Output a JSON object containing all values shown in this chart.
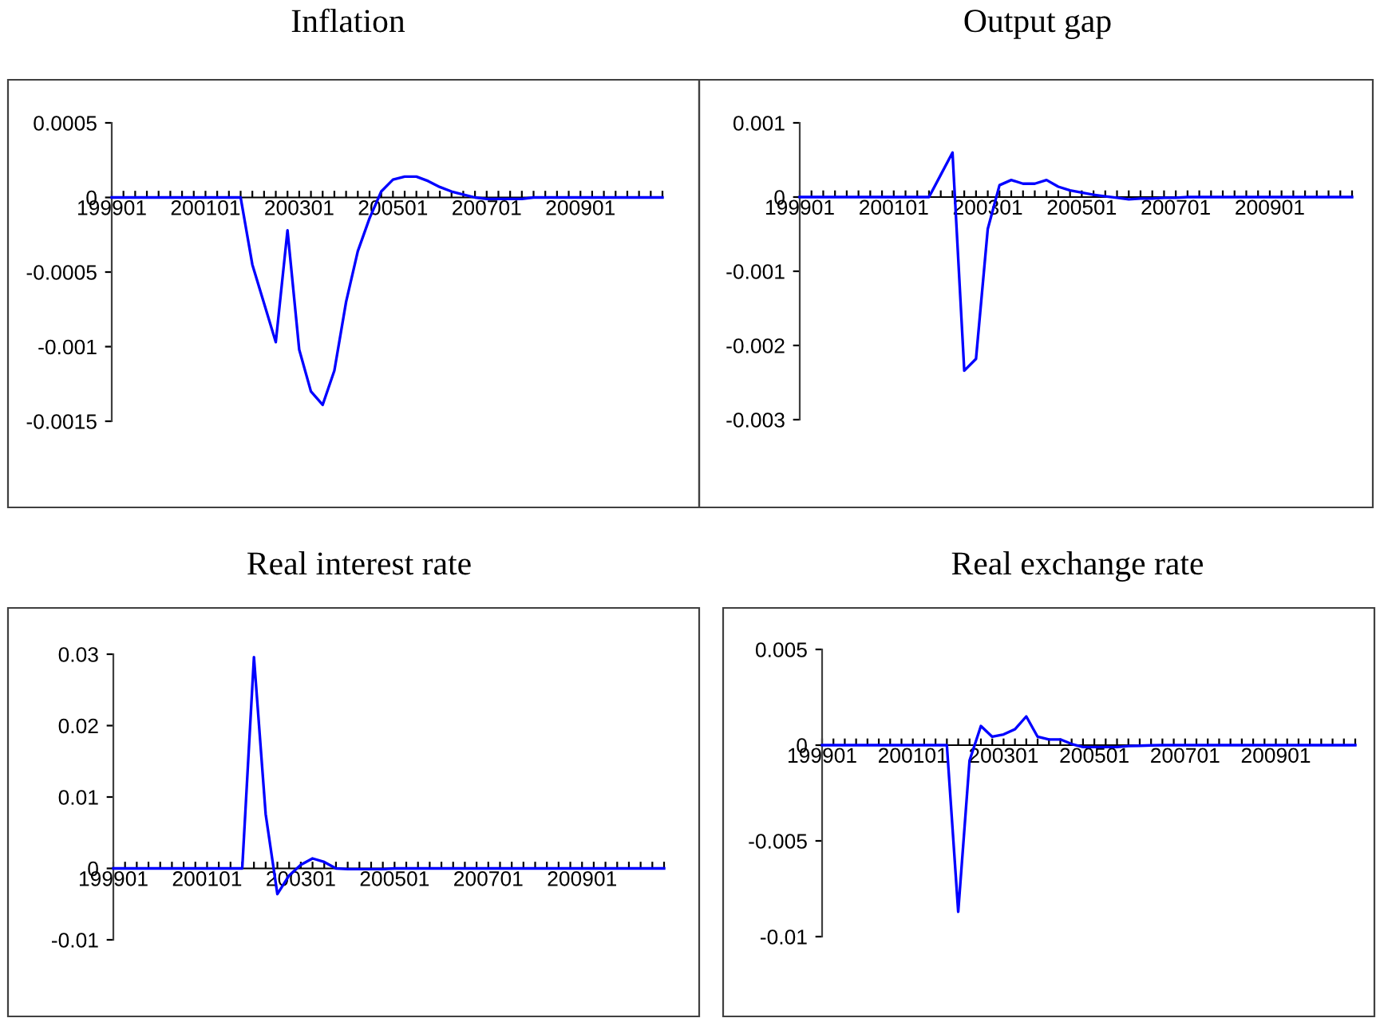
{
  "chart_data": [
    {
      "type": "line",
      "title": "Inflation",
      "categories": [
        "199901",
        null,
        null,
        null,
        null,
        null,
        null,
        null,
        "200101",
        null,
        null,
        null,
        null,
        null,
        null,
        null,
        "200301",
        null,
        null,
        null,
        null,
        null,
        null,
        null,
        "200501",
        null,
        null,
        null,
        null,
        null,
        null,
        null,
        "200701",
        null,
        null,
        null,
        null,
        null,
        null,
        null,
        "200901",
        null,
        null,
        null,
        null,
        null,
        null,
        null
      ],
      "series": [
        {
          "color": "#0000ff",
          "values": [
            0,
            0,
            0,
            0,
            0,
            0,
            0,
            0,
            0,
            0,
            0,
            0,
            -0.00045,
            -0.00071,
            -0.00097,
            -0.00022,
            -0.00102,
            -0.0013,
            -0.00139,
            -0.00116,
            -0.0007,
            -0.00036,
            -0.00014,
            4e-05,
            0.00012,
            0.00014,
            0.00014,
            0.00011,
            7e-05,
            4e-05,
            2e-05,
            0,
            -1e-05,
            -1e-05,
            -1e-05,
            -1e-05,
            0,
            0,
            0,
            0,
            0,
            0,
            0,
            0,
            0,
            0,
            0,
            0
          ]
        }
      ],
      "ylim": [
        -0.0015,
        0.0005
      ],
      "yticks": [
        -0.0015,
        -0.001,
        -0.0005,
        0,
        0.0005
      ],
      "grid": false
    },
    {
      "type": "line",
      "title": "Output gap",
      "categories": [
        "199901",
        null,
        null,
        null,
        null,
        null,
        null,
        null,
        "200101",
        null,
        null,
        null,
        null,
        null,
        null,
        null,
        "200301",
        null,
        null,
        null,
        null,
        null,
        null,
        null,
        "200501",
        null,
        null,
        null,
        null,
        null,
        null,
        null,
        "200701",
        null,
        null,
        null,
        null,
        null,
        null,
        null,
        "200901",
        null,
        null,
        null,
        null,
        null,
        null,
        null
      ],
      "series": [
        {
          "color": "#0000ff",
          "values": [
            0,
            0,
            0,
            0,
            0,
            0,
            0,
            0,
            0,
            0,
            0,
            0,
            0.0003,
            0.0006,
            -0.00234,
            -0.00218,
            -0.00043,
            0.00016,
            0.00023,
            0.00018,
            0.00018,
            0.00023,
            0.00014,
            9e-05,
            6e-05,
            3e-05,
            1e-05,
            -1e-05,
            -3e-05,
            -2e-05,
            -2e-05,
            -1e-05,
            -1e-05,
            0,
            0,
            0,
            0,
            0,
            0,
            0,
            0,
            0,
            0,
            0,
            0,
            0,
            0,
            0
          ]
        }
      ],
      "ylim": [
        -0.003,
        0.001
      ],
      "yticks": [
        -0.003,
        -0.002,
        -0.001,
        0,
        0.001
      ],
      "grid": false
    },
    {
      "type": "line",
      "title": "Real interest rate",
      "categories": [
        "199901",
        null,
        null,
        null,
        null,
        null,
        null,
        null,
        "200101",
        null,
        null,
        null,
        null,
        null,
        null,
        null,
        "200301",
        null,
        null,
        null,
        null,
        null,
        null,
        null,
        "200501",
        null,
        null,
        null,
        null,
        null,
        null,
        null,
        "200701",
        null,
        null,
        null,
        null,
        null,
        null,
        null,
        "200901",
        null,
        null,
        null,
        null,
        null,
        null,
        null
      ],
      "series": [
        {
          "color": "#0000ff",
          "values": [
            0,
            0,
            0,
            0,
            0,
            0,
            0,
            0,
            0,
            0,
            0,
            0,
            0.0296,
            0.0076,
            -0.0036,
            -0.001,
            0.0005,
            0.0014,
            0.0009,
            0,
            -0.0001,
            -0.0001,
            -0.0001,
            -0.0001,
            0,
            0,
            0,
            0,
            0,
            0,
            0,
            0,
            0,
            0,
            0,
            0,
            0,
            0,
            0,
            0,
            0,
            0,
            0,
            0,
            0,
            0,
            0,
            0
          ]
        }
      ],
      "ylim": [
        -0.01,
        0.03
      ],
      "yticks": [
        -0.01,
        0,
        0.01,
        0.02,
        0.03
      ],
      "grid": false
    },
    {
      "type": "line",
      "title": "Real exchange rate",
      "categories": [
        "199901",
        null,
        null,
        null,
        null,
        null,
        null,
        null,
        "200101",
        null,
        null,
        null,
        null,
        null,
        null,
        null,
        "200301",
        null,
        null,
        null,
        null,
        null,
        null,
        null,
        "200501",
        null,
        null,
        null,
        null,
        null,
        null,
        null,
        "200701",
        null,
        null,
        null,
        null,
        null,
        null,
        null,
        "200901",
        null,
        null,
        null,
        null,
        null,
        null,
        null
      ],
      "series": [
        {
          "color": "#0000ff",
          "values": [
            0,
            0,
            0,
            0,
            0,
            0,
            0,
            0,
            0,
            0,
            0,
            0,
            -0.0087,
            -0.0008,
            0.001,
            0.00044,
            0.00056,
            0.00083,
            0.0015,
            0.00044,
            0.0003,
            0.0003,
            6e-05,
            -0.0001,
            -0.0001,
            -0.0001,
            -0.0001,
            -5e-05,
            -3e-05,
            -1e-05,
            0,
            0,
            0,
            0,
            0,
            0,
            0,
            0,
            0,
            0,
            0,
            0,
            0,
            0,
            0,
            0,
            0,
            0
          ]
        }
      ],
      "ylim": [
        -0.01,
        0.005
      ],
      "yticks": [
        -0.01,
        -0.005,
        0,
        0.005
      ],
      "grid": false
    }
  ]
}
